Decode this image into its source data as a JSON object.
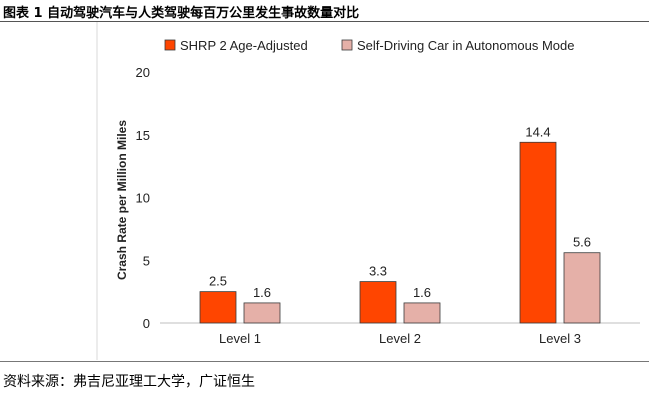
{
  "page": {
    "title": "图表 1 自动驾驶汽车与人类驾驶每百万公里发生事故数量对比",
    "source": "资料来源：弗吉尼亚理工大学，广证恒生"
  },
  "chart_data": {
    "type": "bar",
    "categories": [
      "Level 1",
      "Level 2",
      "Level 3"
    ],
    "series": [
      {
        "name": "SHRP 2 Age-Adjusted",
        "values": [
          2.5,
          3.3,
          14.4
        ],
        "color": "#ff4500"
      },
      {
        "name": "Self-Driving Car in Autonomous Mode",
        "values": [
          1.6,
          1.6,
          5.6
        ],
        "color": "#e5b0a8"
      }
    ],
    "ylabel": "Crash Rate per Million Miles",
    "ylim": [
      0,
      20
    ],
    "yticks": [
      0,
      5,
      10,
      15,
      20
    ],
    "legend": "top",
    "grid": false
  }
}
